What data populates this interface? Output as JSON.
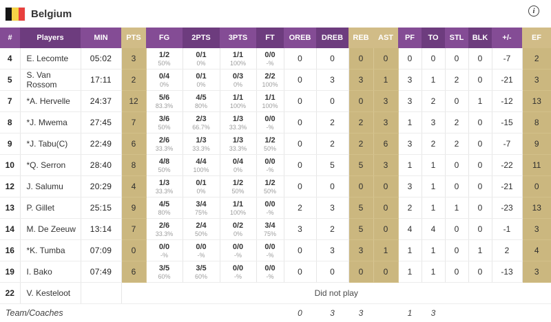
{
  "header": {
    "team": "Belgium",
    "flag_colors": [
      "#151515",
      "#f7d447",
      "#e8403d"
    ],
    "info_glyph": "i"
  },
  "colors": {
    "purple_light": "#844c95",
    "purple_dark": "#6d3c7e",
    "tan_header": "#d1bc87",
    "tan_cell": "#cbb77f"
  },
  "table": {
    "columns": [
      "#",
      "Players",
      "MIN",
      "PTS",
      "FG",
      "2PTS",
      "3PTS",
      "FT",
      "OREB",
      "DREB",
      "REB",
      "AST",
      "PF",
      "TO",
      "STL",
      "BLK",
      "+/-",
      "EF"
    ],
    "rows": [
      {
        "num": "4",
        "name": "E. Lecomte",
        "min": "05:02",
        "pts": "3",
        "fg": {
          "v": "1/2",
          "p": "50%"
        },
        "p2": {
          "v": "0/1",
          "p": "0%"
        },
        "p3": {
          "v": "1/1",
          "p": "100%"
        },
        "ft": {
          "v": "0/0",
          "p": "-%"
        },
        "oreb": "0",
        "dreb": "0",
        "reb": "0",
        "ast": "0",
        "pf": "0",
        "to": "0",
        "stl": "0",
        "blk": "0",
        "pm": "-7",
        "ef": "2"
      },
      {
        "num": "5",
        "name": "S. Van Rossom",
        "min": "17:11",
        "pts": "2",
        "fg": {
          "v": "0/4",
          "p": "0%"
        },
        "p2": {
          "v": "0/1",
          "p": "0%"
        },
        "p3": {
          "v": "0/3",
          "p": "0%"
        },
        "ft": {
          "v": "2/2",
          "p": "100%"
        },
        "oreb": "0",
        "dreb": "3",
        "reb": "3",
        "ast": "1",
        "pf": "3",
        "to": "1",
        "stl": "2",
        "blk": "0",
        "pm": "-21",
        "ef": "3"
      },
      {
        "num": "7",
        "name": "*A. Hervelle",
        "min": "24:37",
        "pts": "12",
        "fg": {
          "v": "5/6",
          "p": "83.3%"
        },
        "p2": {
          "v": "4/5",
          "p": "80%"
        },
        "p3": {
          "v": "1/1",
          "p": "100%"
        },
        "ft": {
          "v": "1/1",
          "p": "100%"
        },
        "oreb": "0",
        "dreb": "0",
        "reb": "0",
        "ast": "3",
        "pf": "3",
        "to": "2",
        "stl": "0",
        "blk": "1",
        "pm": "-12",
        "ef": "13"
      },
      {
        "num": "8",
        "name": "*J. Mwema",
        "min": "27:45",
        "pts": "7",
        "fg": {
          "v": "3/6",
          "p": "50%"
        },
        "p2": {
          "v": "2/3",
          "p": "66.7%"
        },
        "p3": {
          "v": "1/3",
          "p": "33.3%"
        },
        "ft": {
          "v": "0/0",
          "p": "-%"
        },
        "oreb": "0",
        "dreb": "2",
        "reb": "2",
        "ast": "3",
        "pf": "1",
        "to": "3",
        "stl": "2",
        "blk": "0",
        "pm": "-15",
        "ef": "8"
      },
      {
        "num": "9",
        "name": "*J. Tabu(C)",
        "min": "22:49",
        "pts": "6",
        "fg": {
          "v": "2/6",
          "p": "33.3%"
        },
        "p2": {
          "v": "1/3",
          "p": "33.3%"
        },
        "p3": {
          "v": "1/3",
          "p": "33.3%"
        },
        "ft": {
          "v": "1/2",
          "p": "50%"
        },
        "oreb": "0",
        "dreb": "2",
        "reb": "2",
        "ast": "6",
        "pf": "3",
        "to": "2",
        "stl": "2",
        "blk": "0",
        "pm": "-7",
        "ef": "9"
      },
      {
        "num": "10",
        "name": "*Q. Serron",
        "min": "28:40",
        "pts": "8",
        "fg": {
          "v": "4/8",
          "p": "50%"
        },
        "p2": {
          "v": "4/4",
          "p": "100%"
        },
        "p3": {
          "v": "0/4",
          "p": "0%"
        },
        "ft": {
          "v": "0/0",
          "p": "-%"
        },
        "oreb": "0",
        "dreb": "5",
        "reb": "5",
        "ast": "3",
        "pf": "1",
        "to": "1",
        "stl": "0",
        "blk": "0",
        "pm": "-22",
        "ef": "11"
      },
      {
        "num": "12",
        "name": "J. Salumu",
        "min": "20:29",
        "pts": "4",
        "fg": {
          "v": "1/3",
          "p": "33.3%"
        },
        "p2": {
          "v": "0/1",
          "p": "0%"
        },
        "p3": {
          "v": "1/2",
          "p": "50%"
        },
        "ft": {
          "v": "1/2",
          "p": "50%"
        },
        "oreb": "0",
        "dreb": "0",
        "reb": "0",
        "ast": "0",
        "pf": "3",
        "to": "1",
        "stl": "0",
        "blk": "0",
        "pm": "-21",
        "ef": "0"
      },
      {
        "num": "13",
        "name": "P. Gillet",
        "min": "25:15",
        "pts": "9",
        "fg": {
          "v": "4/5",
          "p": "80%"
        },
        "p2": {
          "v": "3/4",
          "p": "75%"
        },
        "p3": {
          "v": "1/1",
          "p": "100%"
        },
        "ft": {
          "v": "0/0",
          "p": "-%"
        },
        "oreb": "2",
        "dreb": "3",
        "reb": "5",
        "ast": "0",
        "pf": "2",
        "to": "1",
        "stl": "1",
        "blk": "0",
        "pm": "-23",
        "ef": "13"
      },
      {
        "num": "14",
        "name": "M. De Zeeuw",
        "min": "13:14",
        "pts": "7",
        "fg": {
          "v": "2/6",
          "p": "33.3%"
        },
        "p2": {
          "v": "2/4",
          "p": "50%"
        },
        "p3": {
          "v": "0/2",
          "p": "0%"
        },
        "ft": {
          "v": "3/4",
          "p": "75%"
        },
        "oreb": "3",
        "dreb": "2",
        "reb": "5",
        "ast": "0",
        "pf": "4",
        "to": "4",
        "stl": "0",
        "blk": "0",
        "pm": "-1",
        "ef": "3"
      },
      {
        "num": "16",
        "name": "*K. Tumba",
        "min": "07:09",
        "pts": "0",
        "fg": {
          "v": "0/0",
          "p": "-%"
        },
        "p2": {
          "v": "0/0",
          "p": "-%"
        },
        "p3": {
          "v": "0/0",
          "p": "-%"
        },
        "ft": {
          "v": "0/0",
          "p": "-%"
        },
        "oreb": "0",
        "dreb": "3",
        "reb": "3",
        "ast": "1",
        "pf": "1",
        "to": "1",
        "stl": "0",
        "blk": "1",
        "pm": "2",
        "ef": "4"
      },
      {
        "num": "19",
        "name": "I. Bako",
        "min": "07:49",
        "pts": "6",
        "fg": {
          "v": "3/5",
          "p": "60%"
        },
        "p2": {
          "v": "3/5",
          "p": "60%"
        },
        "p3": {
          "v": "0/0",
          "p": "-%"
        },
        "ft": {
          "v": "0/0",
          "p": "-%"
        },
        "oreb": "0",
        "dreb": "0",
        "reb": "0",
        "ast": "0",
        "pf": "1",
        "to": "1",
        "stl": "0",
        "blk": "0",
        "pm": "-13",
        "ef": "3"
      },
      {
        "num": "22",
        "name": "V. Kesteloot",
        "dnp": "Did not play"
      }
    ],
    "team_row": {
      "label": "Team/Coaches",
      "oreb": "0",
      "dreb": "3",
      "reb": "3",
      "pf": "1",
      "to": "3"
    }
  }
}
